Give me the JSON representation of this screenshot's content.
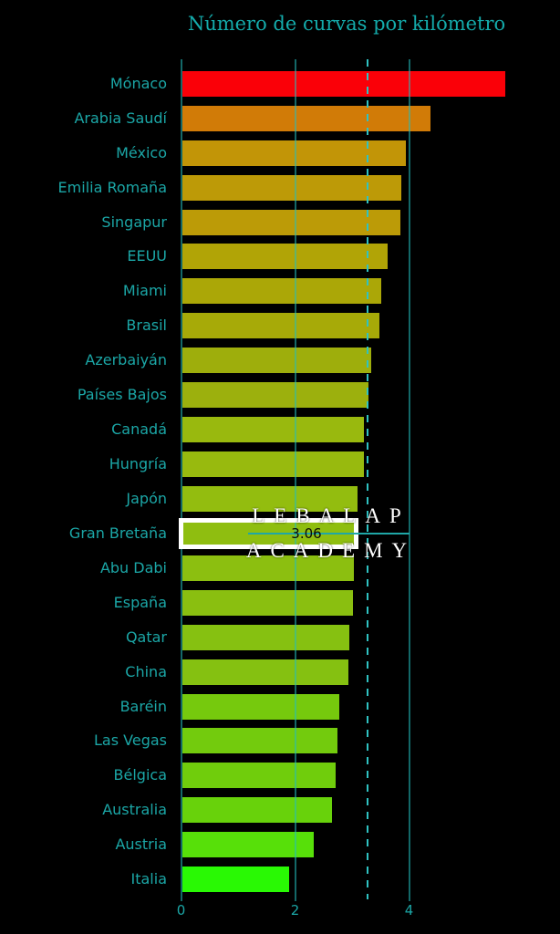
{
  "title": "Número de curvas por kilómetro",
  "watermark": {
    "line1": "LEBALAP",
    "line2": "ACADEMY"
  },
  "annotation": {
    "label": "3.06",
    "highlighted_category": "Gran Bretaña"
  },
  "axis": {
    "tick_labels": [
      "0",
      "2",
      "4"
    ],
    "tick_values": [
      0,
      2,
      4
    ],
    "mean_line_value": 3.27
  },
  "colors": {
    "background": "#000000",
    "title_text": "#14abab",
    "label_text": "#1ba6a6",
    "gridline": "#23bebe",
    "mean_dashed_line": "#2fc2c2",
    "highlight_box": "#ffffff",
    "annotation_line": "#1fa7a7",
    "annotation_text": "#0a0a0a",
    "watermark_text": "#ffffff"
  },
  "chart_data": {
    "type": "bar",
    "orientation": "horizontal",
    "title": "Número de curvas por kilómetro",
    "xlabel": "",
    "ylabel": "",
    "xlim": [
      0,
      6.65
    ],
    "xticks": [
      0,
      2,
      4
    ],
    "grid": true,
    "mean_line": 3.27,
    "categories": [
      "Mónaco",
      "Arabia Saudí",
      "México",
      "Emilia Romaña",
      "Singapur",
      "EEUU",
      "Miami",
      "Brasil",
      "Azerbaiyán",
      "Países Bajos",
      "Canadá",
      "Hungría",
      "Japón",
      "Gran Bretaña",
      "Abu Dabi",
      "España",
      "Qatar",
      "China",
      "Baréin",
      "Las Vegas",
      "Bélgica",
      "Australia",
      "Austria",
      "Italia"
    ],
    "values": [
      5.69,
      4.37,
      3.95,
      3.87,
      3.85,
      3.63,
      3.51,
      3.48,
      3.33,
      3.29,
      3.21,
      3.2,
      3.1,
      3.06,
      3.03,
      3.01,
      2.95,
      2.94,
      2.77,
      2.74,
      2.71,
      2.65,
      2.32,
      1.9
    ],
    "bar_colors": [
      "#FA0008",
      "#D17B07",
      "#C29507",
      "#BD9A07",
      "#BC9B07",
      "#B1A406",
      "#ABA707",
      "#A7AA08",
      "#9EAE0C",
      "#9CB00D",
      "#99B90E",
      "#98BA0E",
      "#93BD0F",
      "#8FBE10",
      "#8CBF10",
      "#8ABF10",
      "#86C111",
      "#85C111",
      "#76C90D",
      "#73CB0D",
      "#70CD0C",
      "#68D20B",
      "#57E009",
      "#29F904"
    ],
    "highlight": {
      "category": "Gran Bretaña",
      "value": 3.06,
      "label": "3.06"
    }
  }
}
